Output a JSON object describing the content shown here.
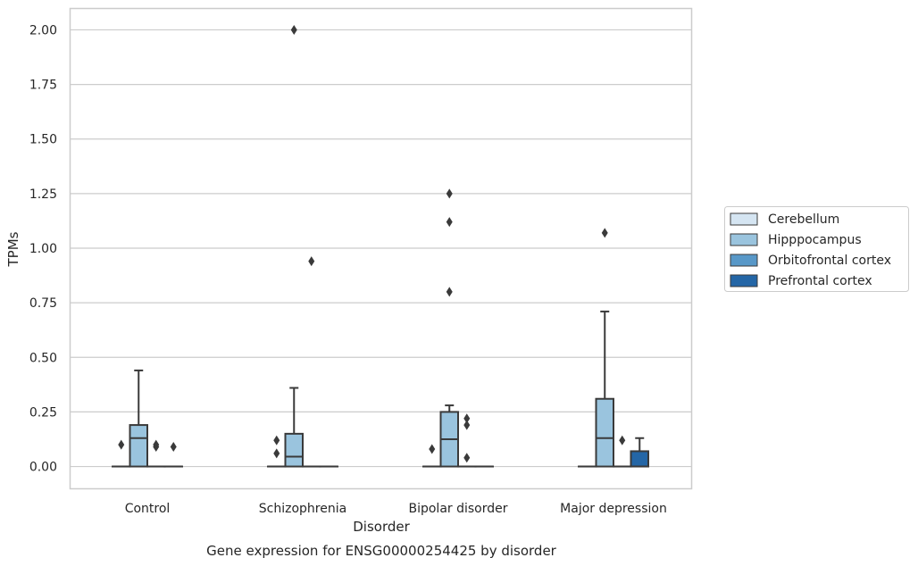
{
  "chart_data": {
    "type": "box",
    "xlabel": "Disorder",
    "ylabel": "TPMs",
    "caption": "Gene expression for ENSG00000254425 by disorder",
    "ylim": [
      -0.1,
      2.1
    ],
    "yticks": [
      "0.00",
      "0.25",
      "0.50",
      "0.75",
      "1.00",
      "1.25",
      "1.50",
      "1.75",
      "2.00"
    ],
    "grid": "horizontal",
    "legend_position": "right",
    "categories": [
      "Control",
      "Schizophrenia",
      "Bipolar disorder",
      "Major depression"
    ],
    "series": [
      {
        "name": "Cerebellum",
        "color": "#d5e5f2",
        "boxes": [
          {
            "category": "Control",
            "whislo": 0,
            "q1": 0,
            "med": 0,
            "q3": 0,
            "whishi": 0,
            "fliers": [
              0.1
            ]
          },
          {
            "category": "Schizophrenia",
            "whislo": 0,
            "q1": 0,
            "med": 0,
            "q3": 0,
            "whishi": 0,
            "fliers": [
              0.06,
              0.12
            ]
          },
          {
            "category": "Bipolar disorder",
            "whislo": 0,
            "q1": 0,
            "med": 0,
            "q3": 0,
            "whishi": 0,
            "fliers": [
              0.08
            ]
          },
          {
            "category": "Major depression",
            "whislo": 0,
            "q1": 0,
            "med": 0,
            "q3": 0,
            "whishi": 0,
            "fliers": []
          }
        ]
      },
      {
        "name": "Hipppocampus",
        "color": "#9ac4de",
        "boxes": [
          {
            "category": "Control",
            "whislo": 0,
            "q1": 0,
            "med": 0.13,
            "q3": 0.19,
            "whishi": 0.44,
            "fliers": []
          },
          {
            "category": "Schizophrenia",
            "whislo": 0,
            "q1": 0,
            "med": 0.045,
            "q3": 0.15,
            "whishi": 0.36,
            "fliers": [
              2.0
            ]
          },
          {
            "category": "Bipolar disorder",
            "whislo": 0,
            "q1": 0,
            "med": 0.125,
            "q3": 0.25,
            "whishi": 0.28,
            "fliers": [
              0.8,
              1.12,
              1.25
            ]
          },
          {
            "category": "Major depression",
            "whislo": 0,
            "q1": 0,
            "med": 0.13,
            "q3": 0.31,
            "whishi": 0.71,
            "fliers": [
              1.07
            ]
          }
        ]
      },
      {
        "name": "Orbitofrontal cortex",
        "color": "#5898c8",
        "boxes": [
          {
            "category": "Control",
            "whislo": 0,
            "q1": 0,
            "med": 0,
            "q3": 0,
            "whishi": 0,
            "fliers": [
              0.09,
              0.1
            ]
          },
          {
            "category": "Schizophrenia",
            "whislo": 0,
            "q1": 0,
            "med": 0,
            "q3": 0,
            "whishi": 0,
            "fliers": [
              0.94
            ]
          },
          {
            "category": "Bipolar disorder",
            "whislo": 0,
            "q1": 0,
            "med": 0,
            "q3": 0,
            "whishi": 0,
            "fliers": [
              0.04,
              0.19,
              0.22
            ]
          },
          {
            "category": "Major depression",
            "whislo": 0,
            "q1": 0,
            "med": 0,
            "q3": 0,
            "whishi": 0,
            "fliers": [
              0.12
            ]
          }
        ]
      },
      {
        "name": "Prefrontal cortex",
        "color": "#2466a6",
        "boxes": [
          {
            "category": "Control",
            "whislo": 0,
            "q1": 0,
            "med": 0,
            "q3": 0,
            "whishi": 0,
            "fliers": [
              0.09
            ]
          },
          {
            "category": "Schizophrenia",
            "whislo": 0,
            "q1": 0,
            "med": 0,
            "q3": 0,
            "whishi": 0,
            "fliers": []
          },
          {
            "category": "Bipolar disorder",
            "whislo": 0,
            "q1": 0,
            "med": 0,
            "q3": 0,
            "whishi": 0,
            "fliers": []
          },
          {
            "category": "Major depression",
            "whislo": 0,
            "q1": 0,
            "med": 0,
            "q3": 0.07,
            "whishi": 0.13,
            "fliers": []
          }
        ]
      }
    ]
  }
}
